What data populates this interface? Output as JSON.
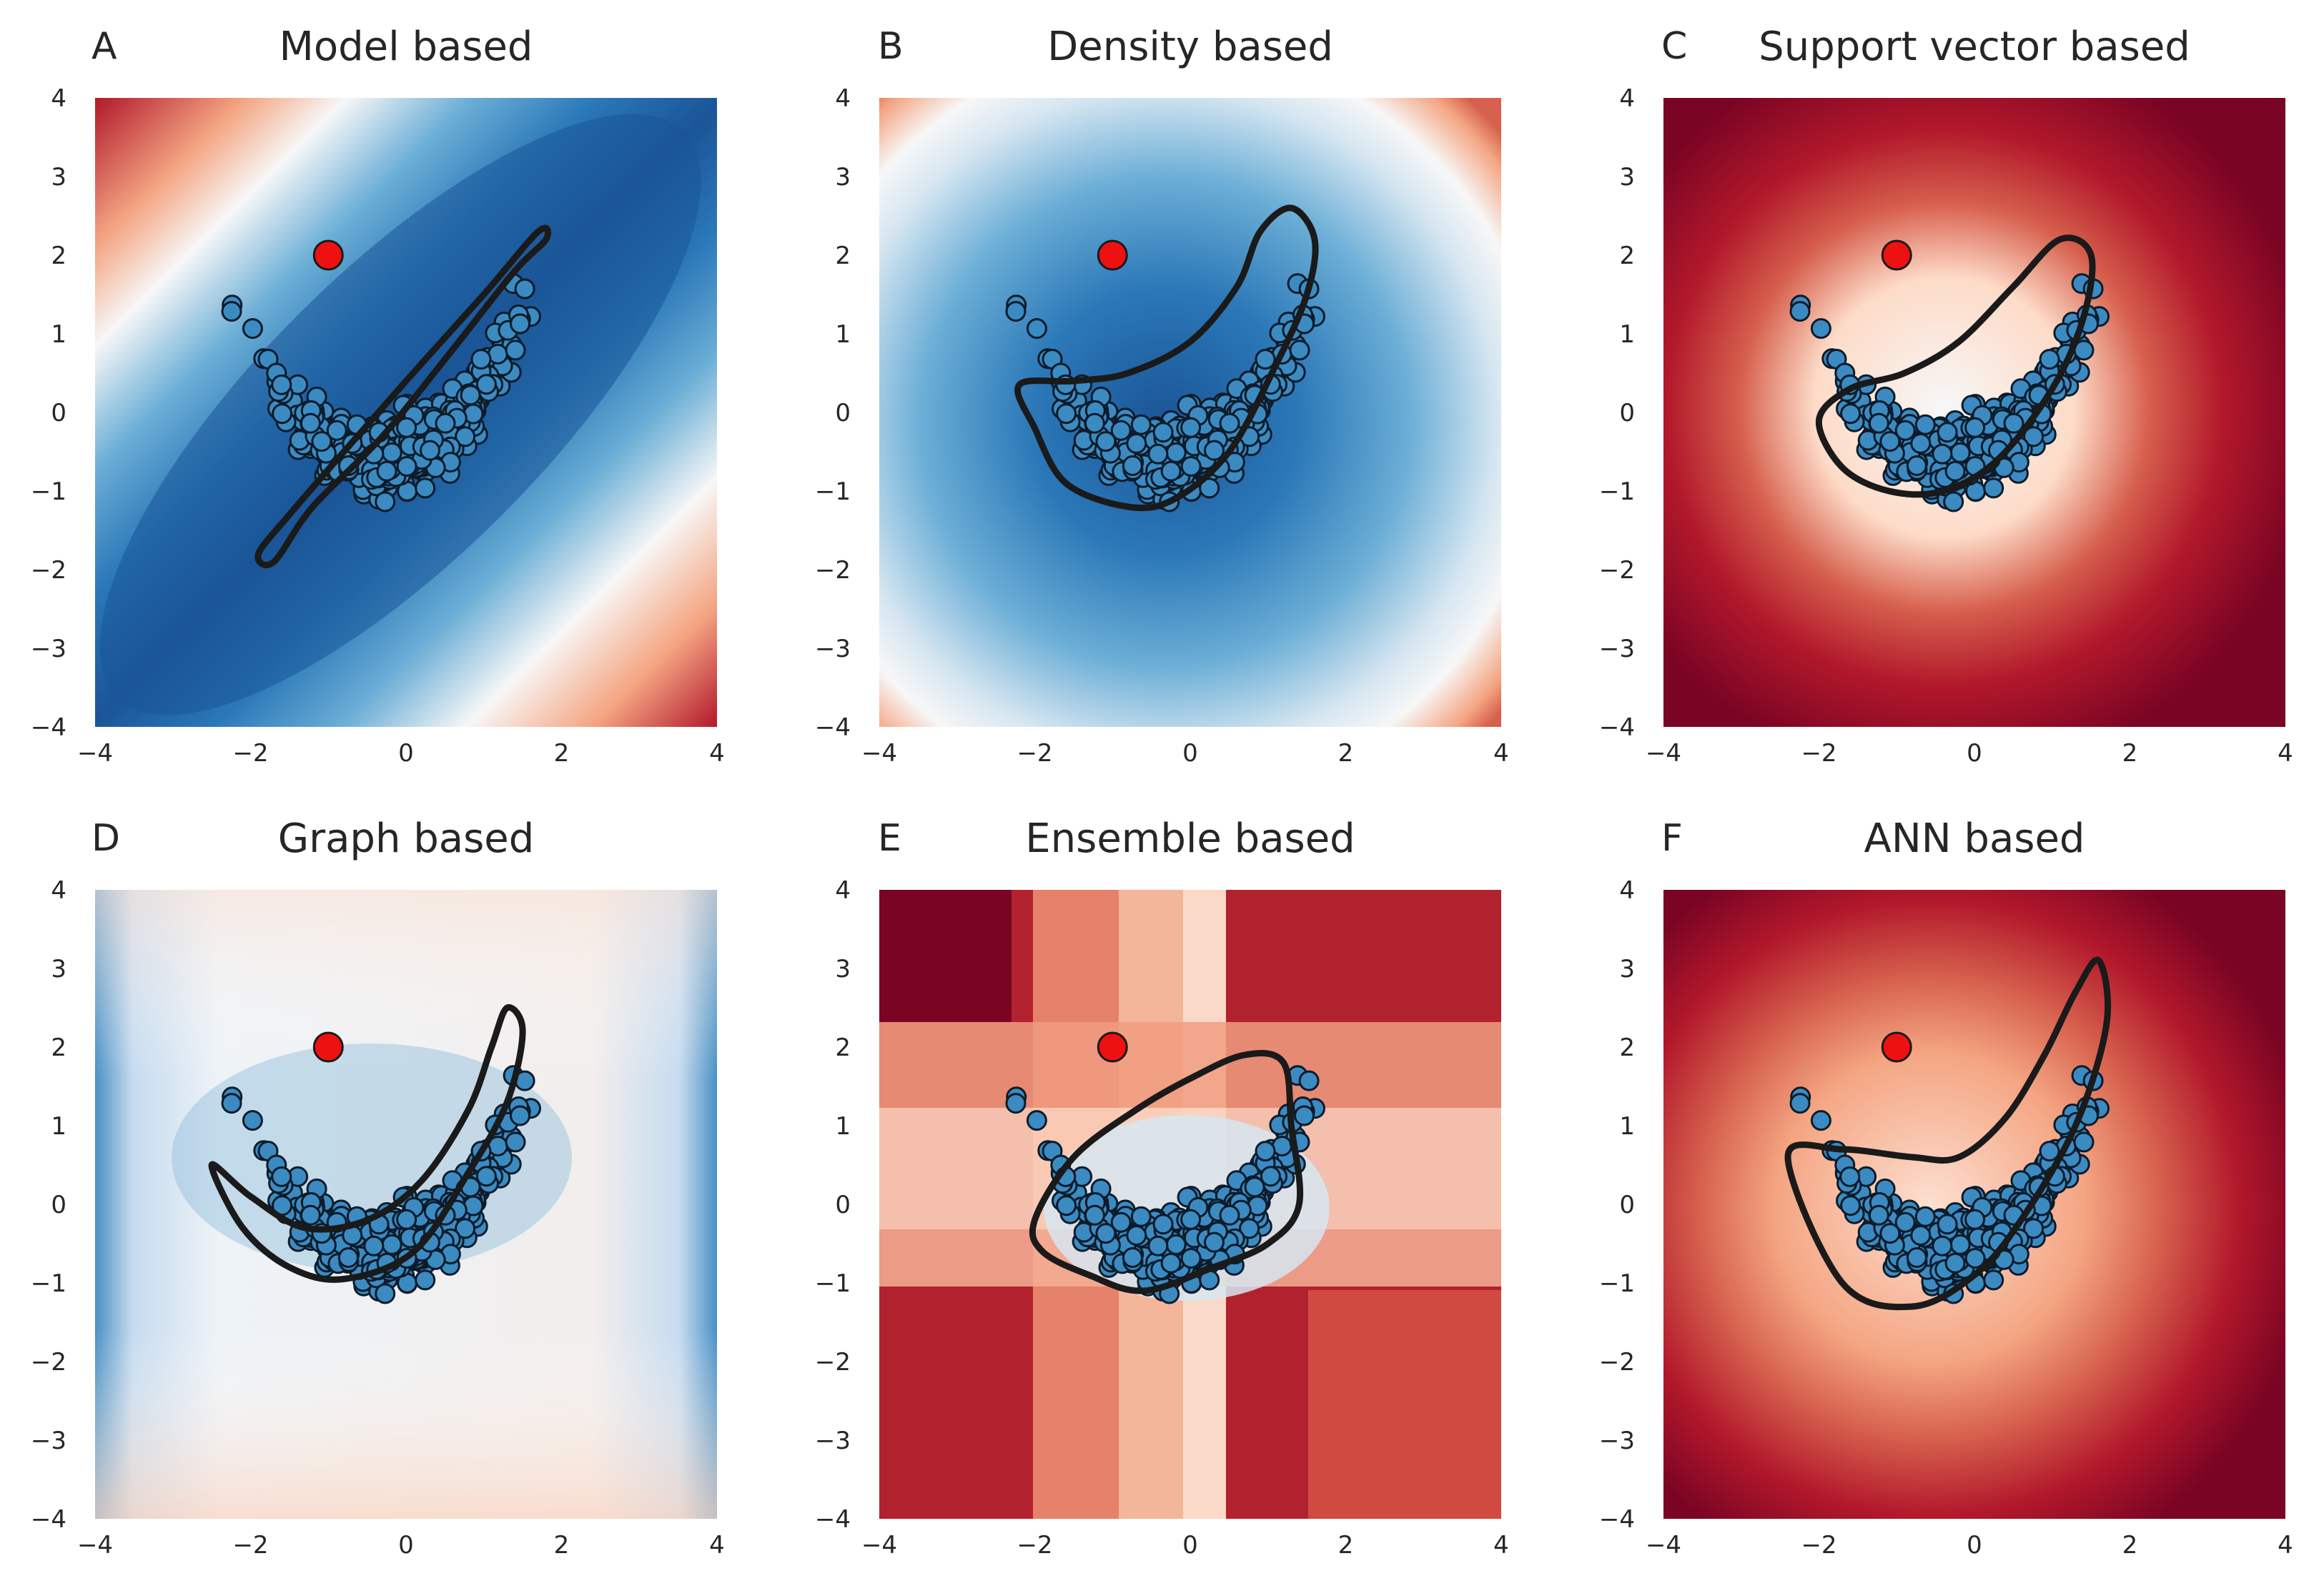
{
  "figure": {
    "type": "multi-panel contour plot",
    "panels": 6
  },
  "palette": {
    "blue_dark": "#1a5597",
    "blue_mid": "#2b78b8",
    "blue_light": "#d6e6f1",
    "white": "#f7f7f7",
    "red_light": "#f6c3a8",
    "red_mid": "#c9413c",
    "red_dark": "#7a0424",
    "point_fill": "#3b8bc2",
    "point_edge": "#0d1b2a",
    "outlier_fill": "#ee1111",
    "boundary": "#1a1a1a"
  },
  "chart_data": [
    {
      "id": "A",
      "type": "heatmap",
      "title": "Model based",
      "xlim": [
        -4,
        4
      ],
      "ylim": [
        -4,
        4
      ],
      "xticks": [
        "−4",
        "−2",
        "0",
        "2",
        "4"
      ],
      "yticks": [
        "4",
        "3",
        "2",
        "1",
        "0",
        "−1",
        "−2",
        "−3",
        "−4"
      ],
      "outlier": {
        "x": -1,
        "y": 2
      },
      "boundary": [
        [
          1.7,
          2.3
        ],
        [
          1.0,
          1.5
        ],
        [
          0.0,
          0.4
        ],
        [
          -0.8,
          -0.5
        ],
        [
          -1.5,
          -1.3
        ],
        [
          -1.9,
          -1.8
        ],
        [
          -1.7,
          -1.9
        ],
        [
          -1.2,
          -1.2
        ],
        [
          -0.3,
          -0.3
        ],
        [
          0.6,
          0.8
        ],
        [
          1.4,
          1.8
        ],
        [
          1.8,
          2.2
        ],
        [
          1.7,
          2.3
        ]
      ]
    },
    {
      "id": "B",
      "type": "heatmap",
      "title": "Density based",
      "xlim": [
        -4,
        4
      ],
      "ylim": [
        -4,
        4
      ],
      "xticks": [
        "−4",
        "−2",
        "0",
        "2",
        "4"
      ],
      "yticks": [
        "4",
        "3",
        "2",
        "1",
        "0",
        "−1",
        "−2",
        "−3",
        "−4"
      ],
      "outlier": {
        "x": -1,
        "y": 2
      },
      "boundary": [
        [
          -2.2,
          0.35
        ],
        [
          -1.5,
          0.4
        ],
        [
          -0.8,
          0.5
        ],
        [
          0.0,
          0.9
        ],
        [
          0.6,
          1.6
        ],
        [
          0.9,
          2.3
        ],
        [
          1.3,
          2.6
        ],
        [
          1.6,
          2.2
        ],
        [
          1.5,
          1.5
        ],
        [
          1.1,
          0.6
        ],
        [
          0.5,
          -0.5
        ],
        [
          -0.2,
          -1.1
        ],
        [
          -0.8,
          -1.2
        ],
        [
          -1.6,
          -0.9
        ],
        [
          -2.0,
          -0.2
        ],
        [
          -2.2,
          0.35
        ]
      ]
    },
    {
      "id": "C",
      "type": "heatmap",
      "title": "Support vector based",
      "xlim": [
        -4,
        4
      ],
      "ylim": [
        -4,
        4
      ],
      "xticks": [
        "−4",
        "−2",
        "0",
        "2",
        "4"
      ],
      "yticks": [
        "4",
        "3",
        "2",
        "1",
        "0",
        "−1",
        "−2",
        "−3",
        "−4"
      ],
      "outlier": {
        "x": -1,
        "y": 2
      },
      "boundary": [
        [
          -2.0,
          -0.1
        ],
        [
          -1.6,
          0.3
        ],
        [
          -0.9,
          0.5
        ],
        [
          -0.2,
          0.9
        ],
        [
          0.5,
          1.6
        ],
        [
          1.1,
          2.2
        ],
        [
          1.5,
          2.0
        ],
        [
          1.4,
          1.2
        ],
        [
          1.0,
          0.3
        ],
        [
          0.3,
          -0.6
        ],
        [
          -0.4,
          -1.0
        ],
        [
          -1.1,
          -1.0
        ],
        [
          -1.7,
          -0.7
        ],
        [
          -2.0,
          -0.1
        ]
      ]
    },
    {
      "id": "D",
      "type": "heatmap",
      "title": "Graph based",
      "xlim": [
        -4,
        4
      ],
      "ylim": [
        -4,
        4
      ],
      "xticks": [
        "−4",
        "−2",
        "0",
        "2",
        "4"
      ],
      "yticks": [
        "4",
        "3",
        "2",
        "1",
        "0",
        "−1",
        "−2",
        "−3",
        "−4"
      ],
      "outlier": {
        "x": -1,
        "y": 2
      },
      "boundary": [
        [
          -2.5,
          0.5
        ],
        [
          -2.0,
          0.1
        ],
        [
          -1.3,
          -0.3
        ],
        [
          -0.5,
          -0.2
        ],
        [
          0.2,
          0.3
        ],
        [
          0.8,
          1.2
        ],
        [
          1.1,
          2.0
        ],
        [
          1.3,
          2.5
        ],
        [
          1.5,
          2.2
        ],
        [
          1.3,
          1.3
        ],
        [
          0.8,
          0.4
        ],
        [
          0.1,
          -0.6
        ],
        [
          -0.8,
          -0.95
        ],
        [
          -1.5,
          -0.8
        ],
        [
          -2.1,
          -0.3
        ],
        [
          -2.5,
          0.5
        ]
      ]
    },
    {
      "id": "E",
      "type": "heatmap",
      "title": "Ensemble based",
      "xlim": [
        -4,
        4
      ],
      "ylim": [
        -4,
        4
      ],
      "xticks": [
        "−4",
        "−2",
        "0",
        "2",
        "4"
      ],
      "yticks": [
        "4",
        "3",
        "2",
        "1",
        "0",
        "−1",
        "−2",
        "−3",
        "−4"
      ],
      "outlier": {
        "x": -1,
        "y": 2
      },
      "boundary": [
        [
          -2.0,
          -0.2
        ],
        [
          -1.5,
          0.6
        ],
        [
          -0.7,
          1.2
        ],
        [
          0.0,
          1.6
        ],
        [
          0.7,
          1.9
        ],
        [
          1.2,
          1.8
        ],
        [
          1.3,
          1.0
        ],
        [
          1.4,
          0.0
        ],
        [
          1.0,
          -0.5
        ],
        [
          0.3,
          -0.8
        ],
        [
          -0.6,
          -1.1
        ],
        [
          -1.3,
          -0.9
        ],
        [
          -1.9,
          -0.6
        ],
        [
          -2.0,
          -0.2
        ]
      ]
    },
    {
      "id": "F",
      "type": "heatmap",
      "title": "ANN based",
      "xlim": [
        -4,
        4
      ],
      "ylim": [
        -4,
        4
      ],
      "xticks": [
        "−4",
        "−2",
        "0",
        "2",
        "4"
      ],
      "yticks": [
        "4",
        "3",
        "2",
        "1",
        "0",
        "−1",
        "−2",
        "−3",
        "−4"
      ],
      "outlier": {
        "x": -1,
        "y": 2
      },
      "boundary": [
        [
          -2.4,
          0.6
        ],
        [
          -1.7,
          0.7
        ],
        [
          -0.8,
          0.6
        ],
        [
          -0.2,
          0.6
        ],
        [
          0.4,
          1.1
        ],
        [
          0.9,
          1.9
        ],
        [
          1.3,
          2.7
        ],
        [
          1.6,
          3.1
        ],
        [
          1.7,
          2.3
        ],
        [
          1.3,
          1.0
        ],
        [
          0.6,
          -0.2
        ],
        [
          0.0,
          -0.9
        ],
        [
          -0.8,
          -1.3
        ],
        [
          -1.7,
          -1.0
        ],
        [
          -2.4,
          0.6
        ]
      ]
    }
  ]
}
